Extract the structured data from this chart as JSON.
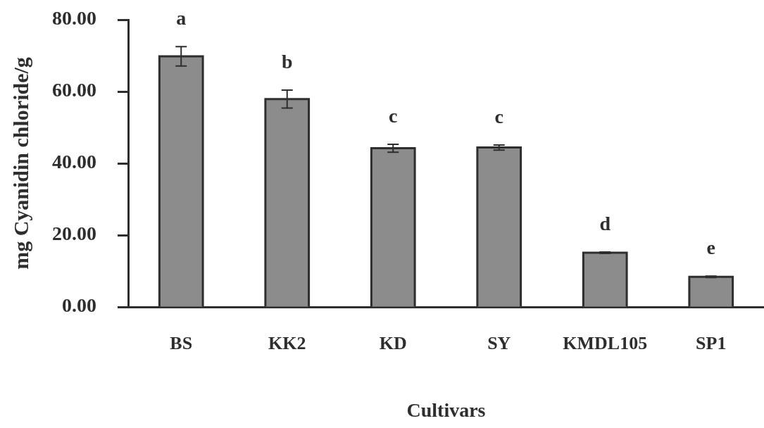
{
  "chart_data": {
    "type": "bar",
    "xlabel": "Cultivars",
    "ylabel": "mg Cyanidin chloride/g",
    "categories": [
      "BS",
      "KK2",
      "KD",
      "SY",
      "KMDL105",
      "SP1"
    ],
    "values": [
      69.8,
      57.9,
      44.2,
      44.4,
      15.1,
      8.4
    ],
    "errors": [
      2.7,
      2.5,
      1.1,
      0.7,
      0.2,
      0.2
    ],
    "value_labels": [
      "a",
      "b",
      "c",
      "c",
      "d",
      "e"
    ],
    "color": "#8c8c8c",
    "ylim": [
      0,
      80
    ],
    "yticks": [
      {
        "value": 0,
        "label": "0.00"
      },
      {
        "value": 20,
        "label": "20.00"
      },
      {
        "value": 40,
        "label": "40.00"
      },
      {
        "value": 60,
        "label": "60.00"
      },
      {
        "value": 80,
        "label": "80.00"
      }
    ]
  }
}
